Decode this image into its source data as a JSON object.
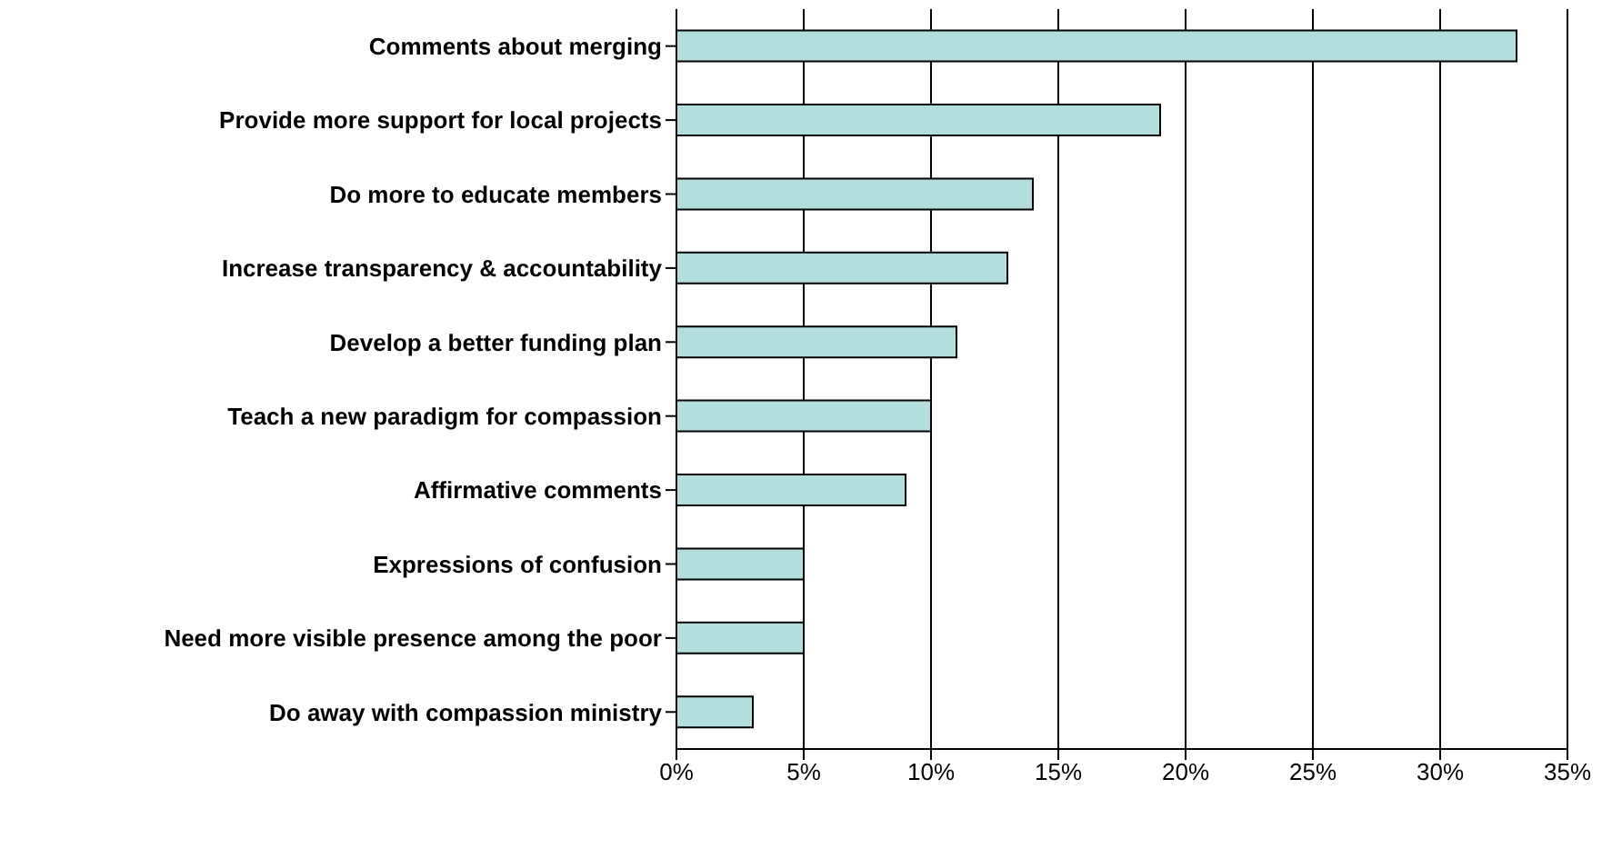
{
  "chart_data": {
    "type": "bar",
    "orientation": "horizontal",
    "categories": [
      "Comments about merging",
      "Provide more support for local projects",
      "Do more to educate members",
      "Increase transparency & accountability",
      "Develop a better funding plan",
      "Teach a new paradigm for compassion",
      "Affirmative comments",
      "Expressions of confusion",
      "Need more visible presence among the poor",
      "Do away with compassion ministry"
    ],
    "values": [
      33,
      19,
      14,
      13,
      11,
      10,
      9,
      5,
      5,
      3
    ],
    "color": "#b3dede",
    "xlim": [
      0,
      35
    ],
    "xticks": [
      {
        "value": 0,
        "label": "0%"
      },
      {
        "value": 5,
        "label": "5%"
      },
      {
        "value": 10,
        "label": "10%"
      },
      {
        "value": 15,
        "label": "15%"
      },
      {
        "value": 20,
        "label": "20%"
      },
      {
        "value": 25,
        "label": "25%"
      },
      {
        "value": 30,
        "label": "30%"
      },
      {
        "value": 35,
        "label": "35%"
      }
    ],
    "grid": "x",
    "legend": false
  }
}
